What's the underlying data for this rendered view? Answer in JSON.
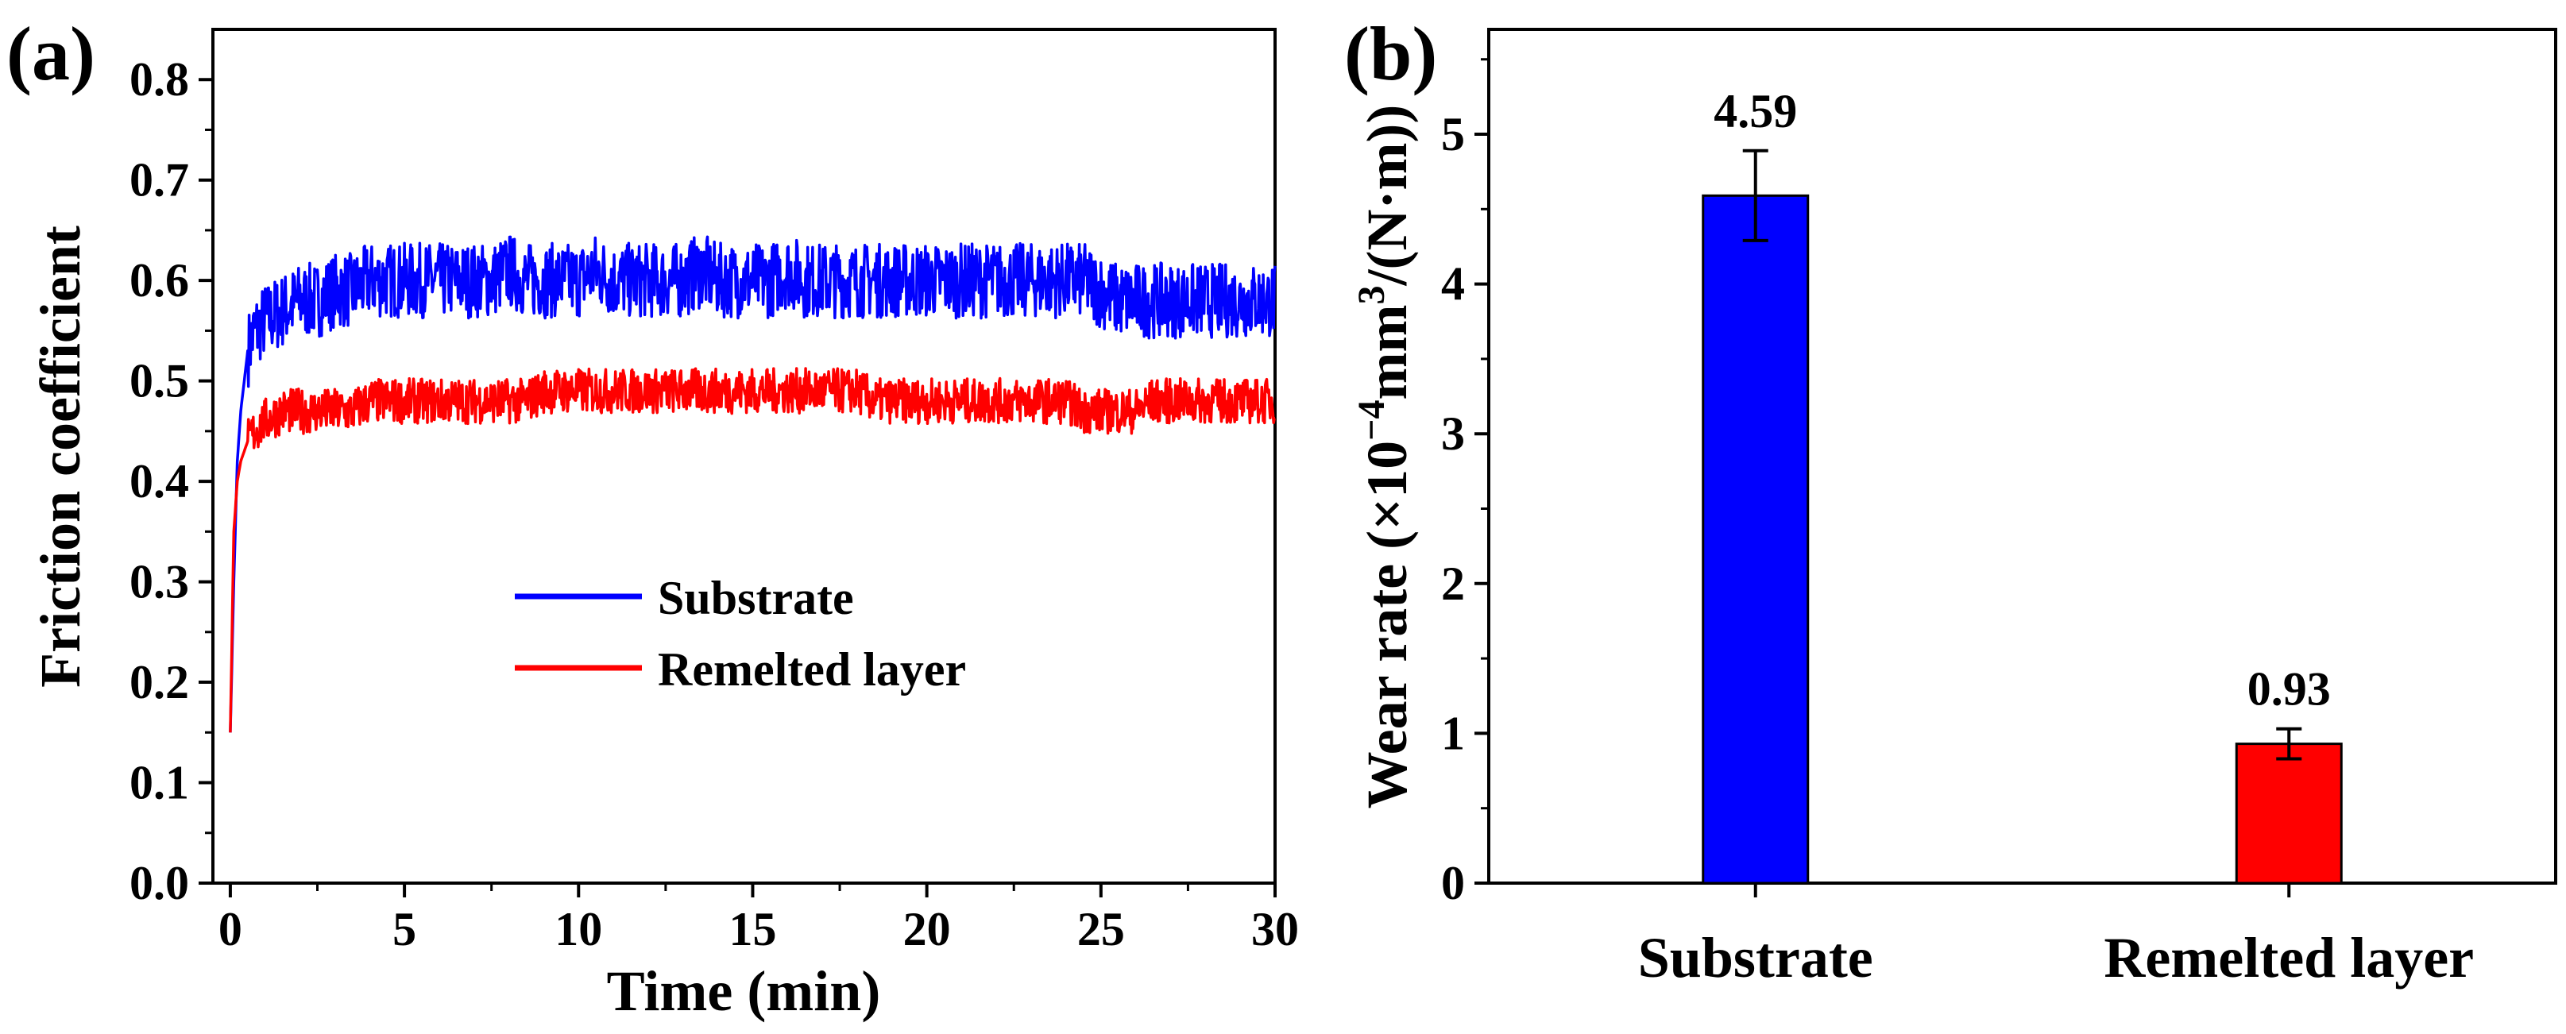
{
  "figure": {
    "panel_a": "(a)",
    "panel_b": "(b)",
    "colors": {
      "substrate": "#0000ff",
      "remelted": "#ff0000",
      "axis": "#000000"
    }
  },
  "chart_data": [
    {
      "id": "a",
      "type": "line",
      "title": "",
      "xlabel": "Time (min)",
      "ylabel": "Friction coefficient",
      "xlim": [
        -0.5,
        30
      ],
      "ylim": [
        0,
        0.85
      ],
      "xticks": [
        0,
        5,
        10,
        15,
        20,
        25,
        30
      ],
      "xtick_labels": [
        "0",
        "5",
        "10",
        "15",
        "20",
        "25",
        "30"
      ],
      "yticks": [
        0.0,
        0.1,
        0.2,
        0.3,
        0.4,
        0.5,
        0.6,
        0.7,
        0.8
      ],
      "ytick_labels": [
        "0.0",
        "0.1",
        "0.2",
        "0.3",
        "0.4",
        "0.5",
        "0.6",
        "0.7",
        "0.8"
      ],
      "legend_position": "center-left",
      "series": [
        {
          "name": "Substrate",
          "color": "#0000ff",
          "x": [
            0,
            0.1,
            0.2,
            0.3,
            0.4,
            0.5,
            0.7,
            1,
            1.5,
            2,
            2.5,
            3,
            3.5,
            4,
            4.5,
            5,
            5.5,
            6,
            6.5,
            7,
            7.5,
            8,
            8.5,
            9,
            9.5,
            10,
            10.5,
            11,
            11.5,
            12,
            12.5,
            13,
            13.5,
            14,
            14.5,
            15,
            15.5,
            16,
            16.5,
            17,
            17.5,
            18,
            18.5,
            19,
            19.5,
            20,
            20.5,
            21,
            21.5,
            22,
            22.5,
            23,
            23.5,
            24,
            24.5,
            25,
            25.5,
            26,
            26.5,
            27,
            27.5,
            28,
            28.5,
            29,
            29.5,
            30
          ],
          "y": [
            0.15,
            0.3,
            0.42,
            0.47,
            0.5,
            0.53,
            0.55,
            0.56,
            0.57,
            0.58,
            0.58,
            0.59,
            0.59,
            0.6,
            0.6,
            0.6,
            0.6,
            0.6,
            0.6,
            0.6,
            0.6,
            0.61,
            0.6,
            0.6,
            0.6,
            0.6,
            0.61,
            0.6,
            0.6,
            0.6,
            0.6,
            0.6,
            0.61,
            0.6,
            0.6,
            0.6,
            0.6,
            0.61,
            0.6,
            0.6,
            0.6,
            0.6,
            0.6,
            0.6,
            0.6,
            0.6,
            0.6,
            0.6,
            0.6,
            0.6,
            0.6,
            0.6,
            0.6,
            0.6,
            0.6,
            0.59,
            0.58,
            0.58,
            0.58,
            0.58,
            0.58,
            0.58,
            0.58,
            0.58,
            0.58,
            0.58
          ]
        },
        {
          "name": "Remelted layer",
          "color": "#ff0000",
          "x": [
            0,
            0.1,
            0.2,
            0.3,
            0.4,
            0.5,
            0.7,
            1,
            1.5,
            2,
            2.5,
            3,
            3.5,
            4,
            4.5,
            5,
            5.5,
            6,
            6.5,
            7,
            7.5,
            8,
            8.5,
            9,
            9.5,
            10,
            10.5,
            11,
            11.5,
            12,
            12.5,
            13,
            13.5,
            14,
            14.5,
            15,
            15.5,
            16,
            16.5,
            17,
            17.5,
            18,
            18.5,
            19,
            19.5,
            20,
            20.5,
            21,
            21.5,
            22,
            22.5,
            23,
            23.5,
            24,
            24.5,
            25,
            25.5,
            26,
            26.5,
            27,
            27.5,
            28,
            28.5,
            29,
            29.5,
            30
          ],
          "y": [
            0.15,
            0.35,
            0.4,
            0.42,
            0.43,
            0.44,
            0.45,
            0.46,
            0.47,
            0.47,
            0.47,
            0.47,
            0.47,
            0.48,
            0.48,
            0.48,
            0.48,
            0.48,
            0.48,
            0.48,
            0.48,
            0.48,
            0.48,
            0.49,
            0.49,
            0.49,
            0.49,
            0.49,
            0.49,
            0.49,
            0.49,
            0.49,
            0.49,
            0.49,
            0.49,
            0.49,
            0.49,
            0.49,
            0.49,
            0.49,
            0.49,
            0.49,
            0.48,
            0.48,
            0.48,
            0.48,
            0.48,
            0.48,
            0.48,
            0.48,
            0.48,
            0.48,
            0.48,
            0.48,
            0.47,
            0.47,
            0.47,
            0.47,
            0.48,
            0.48,
            0.48,
            0.48,
            0.48,
            0.48,
            0.48,
            0.48
          ]
        }
      ]
    },
    {
      "id": "b",
      "type": "bar",
      "title": "",
      "xlabel": "",
      "ylabel_prefix": "Wear rate (×10",
      "ylabel_exp1": "−4",
      "ylabel_mid": "mm",
      "ylabel_exp2": "3",
      "ylabel_suffix": "/(N·m))",
      "ylim": [
        0,
        5.7
      ],
      "yticks": [
        0,
        1,
        2,
        3,
        4,
        5
      ],
      "ytick_labels": [
        "0",
        "1",
        "2",
        "3",
        "4",
        "5"
      ],
      "categories": [
        "Substrate",
        "Remelted layer"
      ],
      "values": [
        4.59,
        0.93
      ],
      "value_labels": [
        "4.59",
        "0.93"
      ],
      "errors": [
        0.3,
        0.1
      ],
      "colors": [
        "#0000ff",
        "#ff0000"
      ]
    }
  ]
}
